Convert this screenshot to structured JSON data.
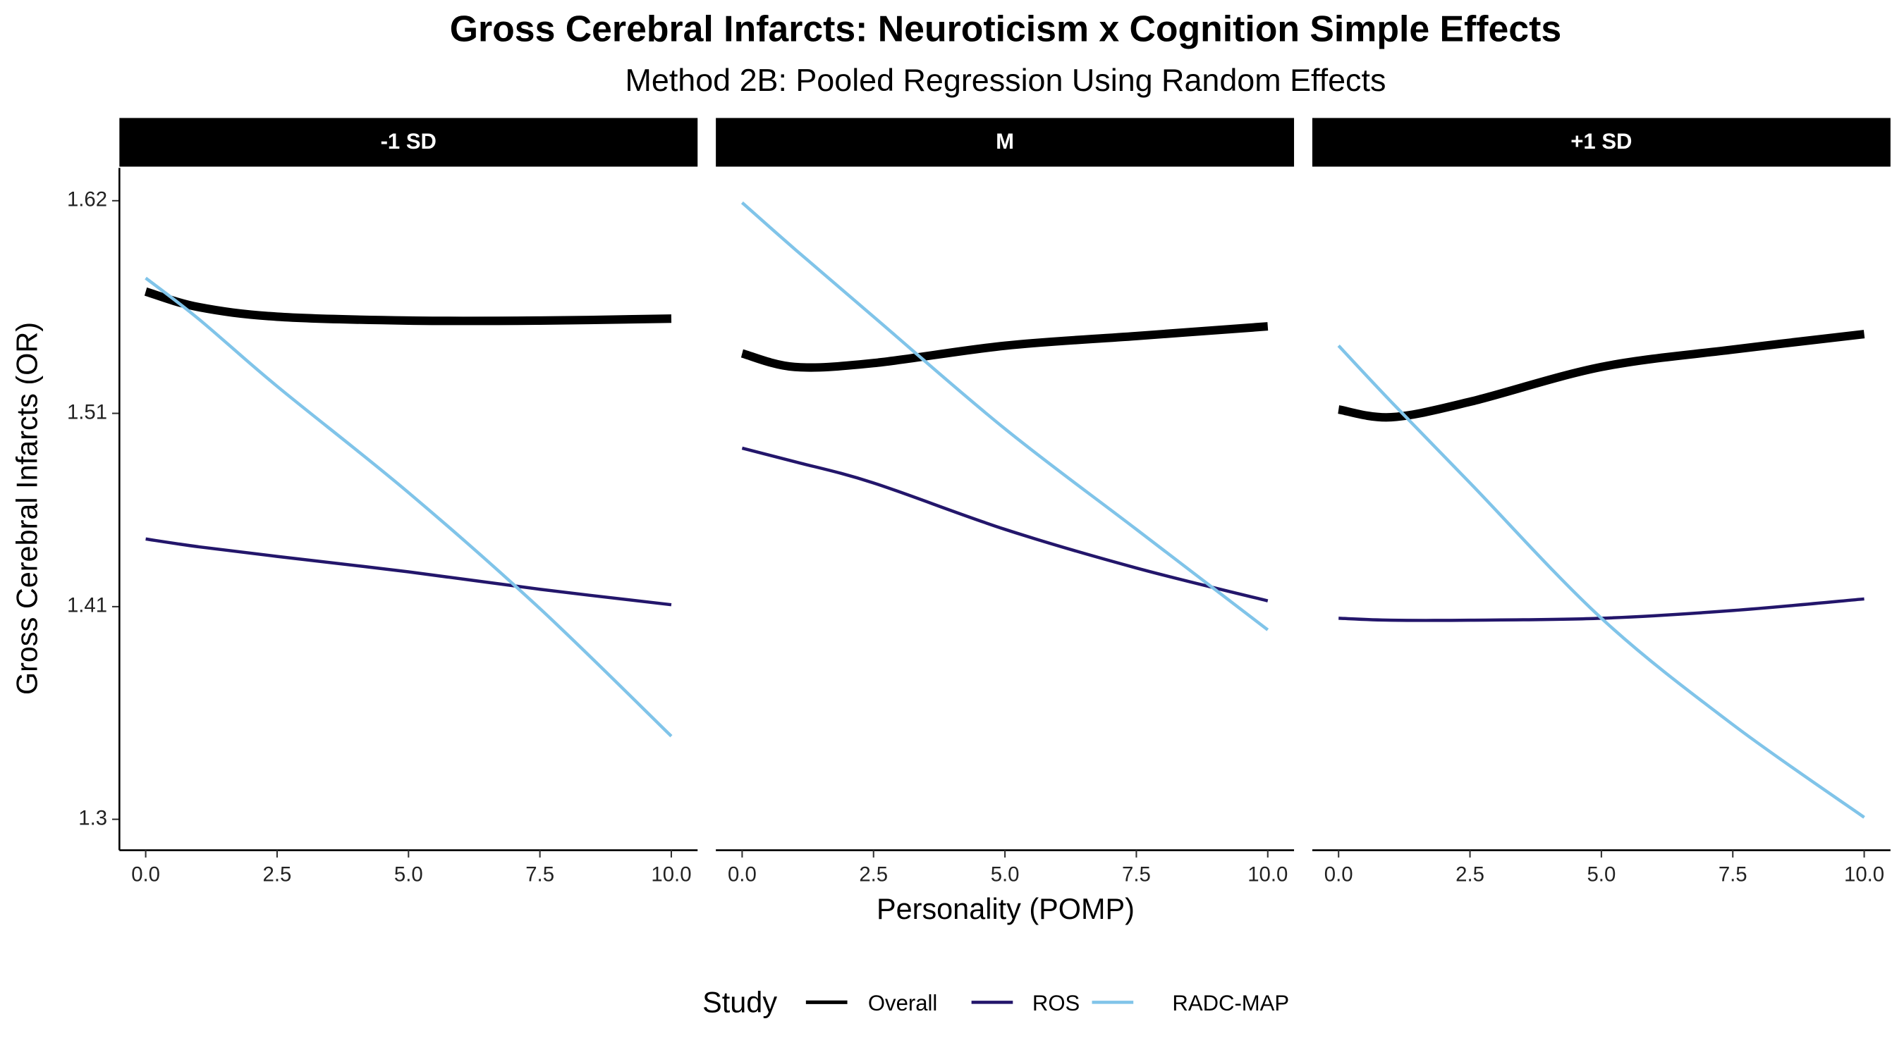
{
  "chart_data": {
    "type": "line",
    "title": "Gross Cerebral Infarcts: Neuroticism x Cognition Simple Effects",
    "subtitle": "Method 2B: Pooled Regression Using Random Effects",
    "x_label": "Personality (POMP)",
    "y_label": "Gross Cerebral Infarcts (OR)",
    "legend_title": "Study",
    "x": [
      0,
      1,
      2.5,
      5,
      7.5,
      10
    ],
    "xlim": [
      -0.5,
      10.5
    ],
    "xticks": [
      {
        "value": 0,
        "label": "0.0"
      },
      2.5,
      {
        "value": 5,
        "label": "5.0"
      },
      7.5,
      {
        "value": 10,
        "label": "10.0"
      }
    ],
    "ylim": [
      1.284,
      1.637
    ],
    "yticks": [
      1.3,
      1.41,
      1.51,
      1.62
    ],
    "grid": false,
    "legend_position": "bottom",
    "panels": [
      {
        "title": "-1 SD",
        "series": [
          {
            "name": "Overall",
            "color": "#000000",
            "values": [
              1.573,
              1.565,
              1.56,
              1.558,
              1.558,
              1.559
            ]
          },
          {
            "name": "ROS",
            "color": "#23166b",
            "values": [
              1.445,
              1.441,
              1.436,
              1.428,
              1.419,
              1.411
            ]
          },
          {
            "name": "RADC-MAP",
            "color": "#80c4e9",
            "values": [
              1.58,
              1.559,
              1.524,
              1.469,
              1.409,
              1.343
            ]
          }
        ]
      },
      {
        "title": "M",
        "series": [
          {
            "name": "Overall",
            "color": "#000000",
            "values": [
              1.541,
              1.534,
              1.536,
              1.545,
              1.55,
              1.555
            ]
          },
          {
            "name": "ROS",
            "color": "#23166b",
            "values": [
              1.492,
              1.485,
              1.474,
              1.45,
              1.43,
              1.413
            ]
          },
          {
            "name": "RADC-MAP",
            "color": "#80c4e9",
            "values": [
              1.619,
              1.595,
              1.56,
              1.502,
              1.45,
              1.398
            ]
          }
        ]
      },
      {
        "title": "+1 SD",
        "series": [
          {
            "name": "Overall",
            "color": "#000000",
            "values": [
              1.512,
              1.508,
              1.516,
              1.534,
              1.543,
              1.551
            ]
          },
          {
            "name": "ROS",
            "color": "#23166b",
            "values": [
              1.404,
              1.403,
              1.403,
              1.404,
              1.408,
              1.414
            ]
          },
          {
            "name": "RADC-MAP",
            "color": "#80c4e9",
            "values": [
              1.545,
              1.516,
              1.474,
              1.404,
              1.349,
              1.301
            ]
          }
        ]
      }
    ]
  }
}
